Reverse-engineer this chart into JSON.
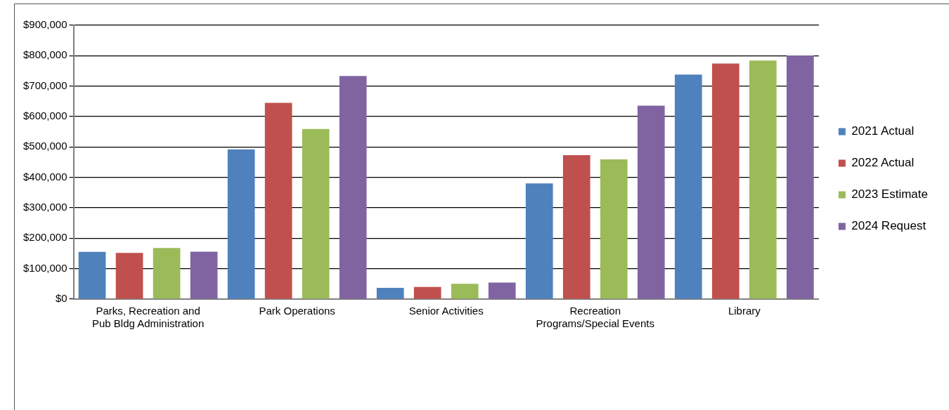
{
  "chart_data": {
    "type": "bar",
    "categories": [
      "Parks, Recreation and Pub Bldg Administration",
      "Park Operations",
      "Senior Activities",
      "Recreation Programs/Special Events",
      "Library"
    ],
    "series": [
      {
        "name": "2021 Actual",
        "color": "#4f81bd",
        "values": [
          155000,
          492000,
          37000,
          380000,
          738000
        ]
      },
      {
        "name": "2022 Actual",
        "color": "#c0504d",
        "values": [
          152000,
          645000,
          40000,
          473000,
          774000
        ]
      },
      {
        "name": "2023 Estimate",
        "color": "#9bbb59",
        "values": [
          168000,
          559000,
          50000,
          459000,
          784000
        ]
      },
      {
        "name": "2024 Request",
        "color": "#8064a2",
        "values": [
          156000,
          733000,
          54000,
          636000,
          801000
        ]
      }
    ],
    "ylim": [
      0,
      900000
    ],
    "yticks": [
      {
        "value": 0,
        "label": "$0"
      },
      {
        "value": 100000,
        "label": "$100,000"
      },
      {
        "value": 200000,
        "label": "$200,000"
      },
      {
        "value": 300000,
        "label": "$300,000"
      },
      {
        "value": 400000,
        "label": "$400,000"
      },
      {
        "value": 500000,
        "label": "$500,000"
      },
      {
        "value": 600000,
        "label": "$600,000"
      },
      {
        "value": 700000,
        "label": "$700,000"
      },
      {
        "value": 800000,
        "label": "$800,000"
      },
      {
        "value": 900000,
        "label": "$900,000"
      }
    ],
    "grid": "y",
    "legend": "right"
  }
}
